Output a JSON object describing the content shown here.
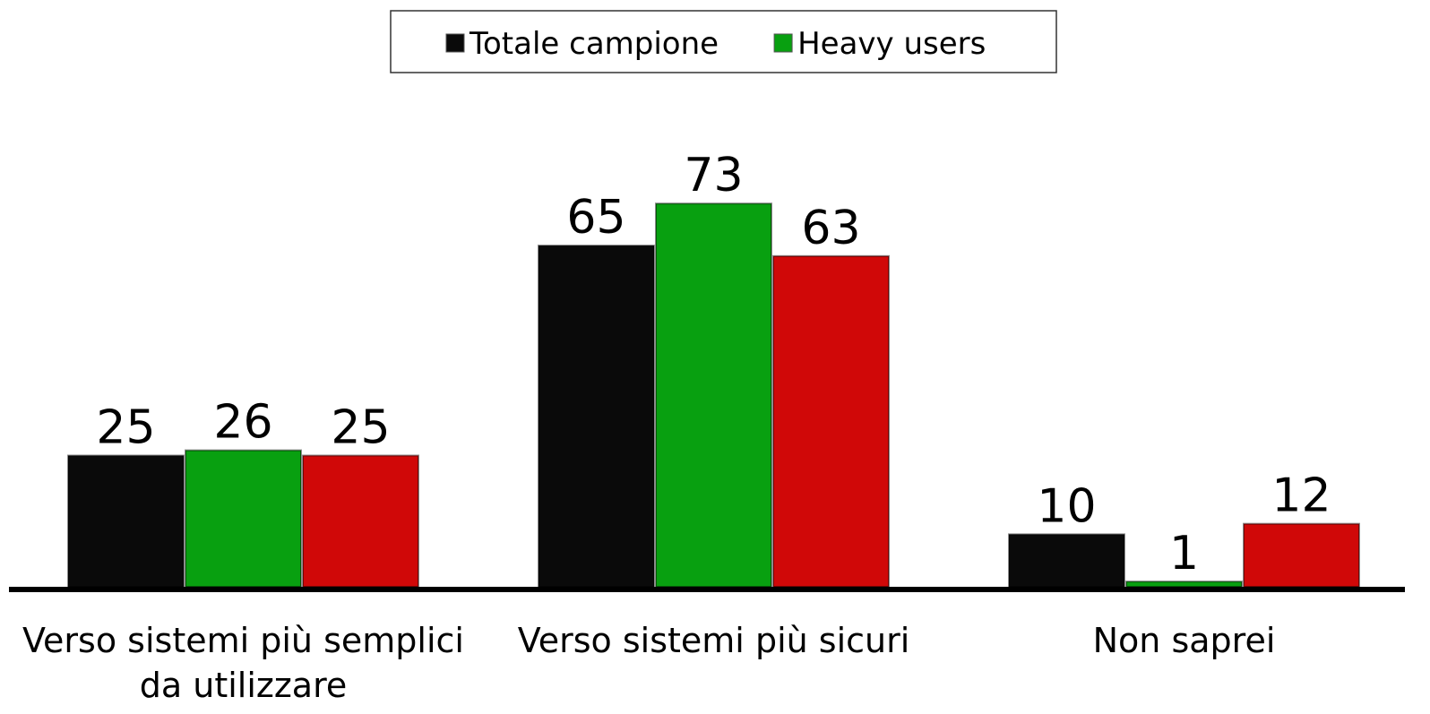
{
  "chart_data": {
    "type": "bar",
    "categories": [
      "Verso sistemi più semplici da utilizzare",
      "Verso sistemi più sicuri",
      "Non saprei"
    ],
    "series": [
      {
        "name": "Totale campione",
        "color": "#0a0a0a",
        "values": [
          25,
          65,
          10
        ]
      },
      {
        "name": "Heavy users",
        "color": "#08a010",
        "values": [
          26,
          73,
          1
        ]
      },
      {
        "color": "#d00808",
        "values": [
          25,
          63,
          12
        ]
      }
    ],
    "legend": "top"
  }
}
